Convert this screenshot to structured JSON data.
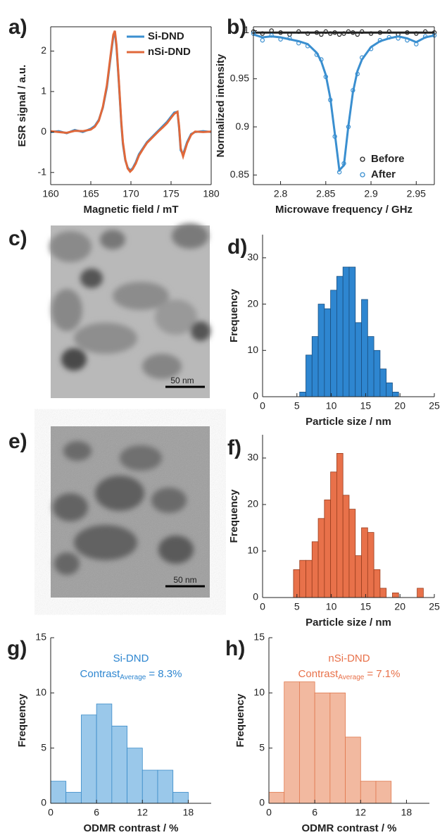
{
  "chart_data": [
    {
      "type": "line",
      "panel_label": "a)",
      "xlabel": "Magnetic field / mT",
      "ylabel": "ESR signal / a.u.",
      "box": true,
      "legend": "top-right",
      "x": [
        160,
        161,
        162,
        163,
        164,
        165,
        165.5,
        166,
        166.5,
        167,
        167.5,
        167.8,
        168,
        168.2,
        168.5,
        168.8,
        169,
        169.3,
        169.6,
        169.9,
        170.2,
        170.6,
        171,
        171.5,
        172,
        172.5,
        173,
        173.5,
        174,
        174.5,
        175,
        175.4,
        175.8,
        176,
        176.2,
        176.5,
        177,
        177.5,
        178,
        179,
        180
      ],
      "series": [
        {
          "name": "Si-DND",
          "color": "#3a8fd0",
          "values": [
            0,
            0.02,
            -0.03,
            0.05,
            0,
            0.08,
            0.15,
            0.3,
            0.6,
            1.1,
            1.9,
            2.35,
            2.45,
            2.1,
            1.2,
            0.2,
            -0.3,
            -0.7,
            -0.88,
            -0.95,
            -0.9,
            -0.75,
            -0.55,
            -0.4,
            -0.25,
            -0.15,
            -0.05,
            0.05,
            0.15,
            0.25,
            0.38,
            0.48,
            0.5,
            0.1,
            -0.45,
            -0.55,
            -0.25,
            -0.05,
            0,
            0.02,
            0
          ]
        },
        {
          "name": "nSi-DND",
          "color": "#e0683a",
          "values": [
            0.02,
            0,
            -0.02,
            0.03,
            0.02,
            0.06,
            0.13,
            0.28,
            0.62,
            1.15,
            1.95,
            2.4,
            2.5,
            2.15,
            1.25,
            0.25,
            -0.25,
            -0.68,
            -0.9,
            -0.98,
            -0.92,
            -0.78,
            -0.58,
            -0.42,
            -0.27,
            -0.17,
            -0.07,
            0.03,
            0.12,
            0.22,
            0.35,
            0.45,
            0.5,
            0.15,
            -0.4,
            -0.6,
            -0.28,
            -0.07,
            0.01,
            0,
            0.01
          ]
        }
      ],
      "xlim": [
        160,
        180
      ],
      "xticks": [
        160,
        165,
        170,
        175,
        180
      ],
      "ylim": [
        -1.3,
        2.6
      ],
      "yticks": [
        -1,
        0,
        1,
        2
      ]
    },
    {
      "type": "scatter",
      "panel_label": "b)",
      "xlabel": "Microwave frequency / GHz",
      "ylabel": "Normalized intensity",
      "box": true,
      "legend": "bottom-right",
      "x": [
        2.77,
        2.78,
        2.79,
        2.8,
        2.81,
        2.82,
        2.83,
        2.84,
        2.845,
        2.85,
        2.855,
        2.86,
        2.865,
        2.87,
        2.875,
        2.88,
        2.885,
        2.89,
        2.9,
        2.91,
        2.92,
        2.93,
        2.94,
        2.95,
        2.96,
        2.97
      ],
      "series": [
        {
          "name": "Before",
          "color": "#222222",
          "values": [
            0.999,
            0.997,
            1.0,
            0.998,
            0.996,
            0.999,
            0.997,
            0.998,
            0.996,
            0.999,
            0.997,
            0.998,
            0.996,
            0.997,
            0.999,
            0.998,
            0.996,
            0.999,
            0.997,
            0.998,
            0.999,
            0.996,
            0.998,
            0.997,
            0.999,
            0.998
          ],
          "fit": [
            0.998,
            0.998,
            0.998,
            0.998,
            0.998,
            0.998,
            0.998,
            0.998,
            0.998,
            0.998,
            0.998,
            0.998,
            0.998,
            0.998,
            0.998,
            0.998,
            0.998,
            0.998,
            0.998,
            0.998,
            0.998,
            0.998,
            0.998,
            0.998,
            0.998,
            0.998
          ]
        },
        {
          "name": "After",
          "color": "#3a8fd0",
          "values": [
            0.997,
            0.99,
            0.995,
            0.991,
            0.992,
            0.987,
            0.984,
            0.975,
            0.97,
            0.952,
            0.928,
            0.89,
            0.853,
            0.862,
            0.9,
            0.938,
            0.955,
            0.972,
            0.981,
            0.99,
            0.993,
            0.992,
            0.99,
            0.986,
            0.994,
            0.995
          ],
          "fit": [
            0.996,
            0.993,
            0.994,
            0.993,
            0.991,
            0.989,
            0.986,
            0.977,
            0.968,
            0.954,
            0.93,
            0.893,
            0.855,
            0.86,
            0.901,
            0.936,
            0.958,
            0.97,
            0.983,
            0.989,
            0.992,
            0.994,
            0.992,
            0.988,
            0.993,
            0.995
          ]
        }
      ],
      "xlim": [
        2.77,
        2.97
      ],
      "xticks": [
        2.8,
        2.85,
        2.9,
        2.95
      ],
      "ylim": [
        0.84,
        1.004
      ],
      "yticks": [
        0.85,
        0.9,
        0.95,
        1
      ]
    },
    {
      "type": "histogram",
      "panel_label": "d)",
      "xlabel": "Particle size / nm",
      "ylabel": "Frequency",
      "color": "#2e86d0",
      "edge": "#1a4f80",
      "bins": [
        5.4,
        6.3,
        7.2,
        8.1,
        9,
        9.9,
        10.8,
        11.7,
        12.6,
        13.5,
        14.4,
        15.3,
        16.2,
        17.1,
        18,
        18.9,
        19.8
      ],
      "values": [
        1,
        9,
        13,
        20,
        19,
        23,
        26,
        28,
        28,
        16,
        21,
        13,
        10,
        6,
        3,
        1
      ],
      "xlim": [
        0,
        25
      ],
      "xticks": [
        0,
        5,
        10,
        15,
        20,
        25
      ],
      "ylim": [
        0,
        35
      ],
      "yticks": [
        0,
        10,
        20,
        30
      ]
    },
    {
      "type": "histogram",
      "panel_label": "f)",
      "xlabel": "Particle size / nm",
      "ylabel": "Frequency",
      "color": "#e8714a",
      "edge": "#9a3e1e",
      "bins": [
        4.5,
        5.4,
        6.3,
        7.2,
        8.1,
        9,
        9.9,
        10.8,
        11.7,
        12.6,
        13.5,
        14.4,
        15.3,
        16.2,
        17.1,
        18,
        18.9,
        19.8,
        20.7,
        21.6,
        22.5,
        23.4
      ],
      "values": [
        6,
        8,
        8,
        12,
        17,
        21,
        27,
        31,
        22,
        19,
        9,
        15,
        14,
        6,
        2,
        0,
        1,
        0,
        0,
        0,
        2
      ],
      "xlim": [
        0,
        25
      ],
      "xticks": [
        0,
        5,
        10,
        15,
        20,
        25
      ],
      "ylim": [
        0,
        35
      ],
      "yticks": [
        0,
        10,
        20,
        30
      ]
    },
    {
      "type": "histogram",
      "panel_label": "g)",
      "xlabel": "ODMR contrast / %",
      "ylabel": "Frequency",
      "color": "#9ac8ea",
      "edge": "#3a8bc8",
      "annotation": {
        "name": "Si-DND",
        "text": "Contrast",
        "subscript": "Average",
        "value_text": "= 8.3%",
        "color": "#2e86d0"
      },
      "bins": [
        0,
        2,
        4,
        6,
        8,
        10,
        12,
        14,
        16,
        18
      ],
      "values": [
        2,
        1,
        8,
        9,
        7,
        5,
        3,
        3,
        1
      ],
      "xlim": [
        0,
        21
      ],
      "xticks": [
        0,
        6,
        12,
        18
      ],
      "ylim": [
        0,
        15
      ],
      "yticks": [
        0,
        5,
        10,
        15
      ]
    },
    {
      "type": "histogram",
      "panel_label": "h)",
      "xlabel": "ODMR contrast / %",
      "ylabel": "Frequency",
      "color": "#f2b9a0",
      "edge": "#e07a50",
      "annotation": {
        "name": "nSi-DND",
        "text": "Contrast",
        "subscript": "Average",
        "value_text": "= 7.1%",
        "color": "#e8714a"
      },
      "bins": [
        0,
        2,
        4,
        6,
        8,
        10,
        12,
        14,
        16
      ],
      "values": [
        1,
        11,
        11,
        10,
        10,
        6,
        2,
        2
      ],
      "xlim": [
        0,
        21
      ],
      "xticks": [
        0,
        6,
        12,
        18
      ],
      "ylim": [
        0,
        15
      ],
      "yticks": [
        0,
        5,
        10,
        15
      ]
    }
  ],
  "images": [
    {
      "panel_label": "c)",
      "scale_bar": "50 nm"
    },
    {
      "panel_label": "e)",
      "scale_bar": "50 nm"
    }
  ]
}
